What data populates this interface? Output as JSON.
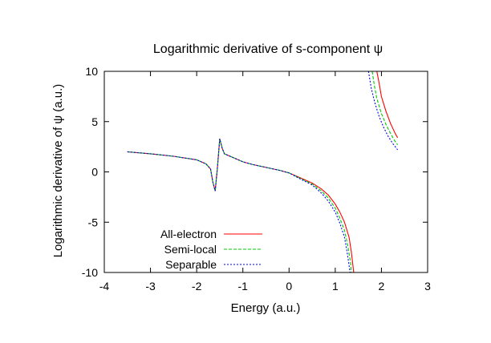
{
  "chart_data": {
    "type": "line",
    "title": "Logarithmic derivative of s-component ψ",
    "xlabel": "Energy (a.u.)",
    "ylabel": "Logarithmic derivative of ψ (a.u.)",
    "xlim": [
      -4,
      3
    ],
    "ylim": [
      -10,
      10
    ],
    "xticks": [
      "-4",
      "-3",
      "-2",
      "-1",
      "0",
      "1",
      "2",
      "3"
    ],
    "yticks": [
      "10",
      "5",
      "0",
      "-5",
      "-10"
    ],
    "grid": false,
    "legend_position": "bottom-left",
    "series": [
      {
        "name": "All-electron",
        "color": "#ff0000",
        "dash": "solid",
        "segments": [
          [
            [
              -3.5,
              2.0
            ],
            [
              -3.0,
              1.8
            ],
            [
              -2.5,
              1.55
            ],
            [
              -2.0,
              1.2
            ],
            [
              -1.8,
              0.8
            ],
            [
              -1.7,
              0.3
            ],
            [
              -1.65,
              -1.0
            ],
            [
              -1.6,
              -1.9
            ],
            [
              -1.55,
              0.5
            ],
            [
              -1.5,
              3.3
            ],
            [
              -1.45,
              2.4
            ],
            [
              -1.4,
              1.8
            ],
            [
              -1.2,
              1.4
            ],
            [
              -1.0,
              1.0
            ],
            [
              -0.8,
              0.75
            ],
            [
              -0.5,
              0.45
            ],
            [
              -0.2,
              0.15
            ],
            [
              0.0,
              -0.1
            ],
            [
              0.2,
              -0.5
            ],
            [
              0.5,
              -1.1
            ],
            [
              0.7,
              -1.7
            ],
            [
              0.85,
              -2.3
            ],
            [
              1.0,
              -3.2
            ],
            [
              1.1,
              -4.0
            ],
            [
              1.2,
              -5.0
            ],
            [
              1.3,
              -6.5
            ],
            [
              1.35,
              -8.0
            ],
            [
              1.4,
              -10.0
            ]
          ],
          [
            [
              1.9,
              10.0
            ],
            [
              1.95,
              8.8
            ],
            [
              2.0,
              7.5
            ],
            [
              2.1,
              6.0
            ],
            [
              2.2,
              4.8
            ],
            [
              2.3,
              3.8
            ],
            [
              2.35,
              3.4
            ]
          ]
        ]
      },
      {
        "name": "Semi-local",
        "color": "#00cc00",
        "dash": "dash",
        "segments": [
          [
            [
              -3.5,
              2.0
            ],
            [
              -3.0,
              1.8
            ],
            [
              -2.5,
              1.55
            ],
            [
              -2.0,
              1.2
            ],
            [
              -1.8,
              0.8
            ],
            [
              -1.7,
              0.3
            ],
            [
              -1.65,
              -1.0
            ],
            [
              -1.6,
              -1.9
            ],
            [
              -1.55,
              0.5
            ],
            [
              -1.5,
              3.3
            ],
            [
              -1.45,
              2.4
            ],
            [
              -1.4,
              1.8
            ],
            [
              -1.2,
              1.4
            ],
            [
              -1.0,
              1.0
            ],
            [
              -0.8,
              0.75
            ],
            [
              -0.5,
              0.45
            ],
            [
              -0.2,
              0.15
            ],
            [
              0.0,
              -0.1
            ],
            [
              0.2,
              -0.55
            ],
            [
              0.5,
              -1.2
            ],
            [
              0.7,
              -1.9
            ],
            [
              0.85,
              -2.6
            ],
            [
              1.0,
              -3.6
            ],
            [
              1.1,
              -4.6
            ],
            [
              1.2,
              -5.8
            ],
            [
              1.27,
              -7.3
            ],
            [
              1.33,
              -9.0
            ],
            [
              1.35,
              -10.0
            ]
          ],
          [
            [
              1.8,
              10.0
            ],
            [
              1.85,
              8.5
            ],
            [
              1.9,
              7.3
            ],
            [
              2.0,
              5.8
            ],
            [
              2.1,
              4.7
            ],
            [
              2.2,
              3.8
            ],
            [
              2.3,
              3.0
            ],
            [
              2.35,
              2.7
            ]
          ]
        ]
      },
      {
        "name": "Separable",
        "color": "#0000ff",
        "dash": "dot",
        "segments": [
          [
            [
              -3.5,
              2.0
            ],
            [
              -3.0,
              1.8
            ],
            [
              -2.5,
              1.55
            ],
            [
              -2.0,
              1.2
            ],
            [
              -1.8,
              0.8
            ],
            [
              -1.7,
              0.3
            ],
            [
              -1.65,
              -1.0
            ],
            [
              -1.6,
              -1.9
            ],
            [
              -1.55,
              0.5
            ],
            [
              -1.5,
              3.3
            ],
            [
              -1.45,
              2.4
            ],
            [
              -1.4,
              1.8
            ],
            [
              -1.2,
              1.4
            ],
            [
              -1.0,
              1.0
            ],
            [
              -0.8,
              0.75
            ],
            [
              -0.5,
              0.45
            ],
            [
              -0.2,
              0.15
            ],
            [
              0.0,
              -0.1
            ],
            [
              0.2,
              -0.6
            ],
            [
              0.5,
              -1.3
            ],
            [
              0.7,
              -2.1
            ],
            [
              0.85,
              -2.9
            ],
            [
              1.0,
              -4.0
            ],
            [
              1.1,
              -5.1
            ],
            [
              1.2,
              -6.5
            ],
            [
              1.25,
              -7.8
            ],
            [
              1.3,
              -9.3
            ],
            [
              1.32,
              -10.0
            ]
          ],
          [
            [
              1.72,
              10.0
            ],
            [
              1.78,
              8.3
            ],
            [
              1.85,
              7.0
            ],
            [
              1.95,
              5.5
            ],
            [
              2.05,
              4.4
            ],
            [
              2.15,
              3.5
            ],
            [
              2.25,
              2.8
            ],
            [
              2.35,
              2.2
            ]
          ]
        ]
      }
    ]
  }
}
